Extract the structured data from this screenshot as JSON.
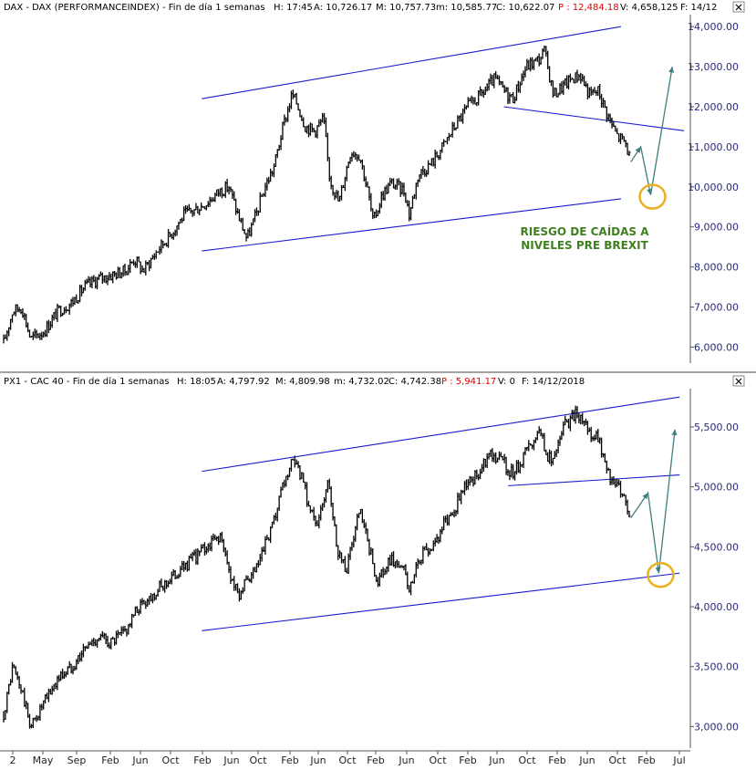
{
  "colors": {
    "price": "#000000",
    "channel": "#1a1acc",
    "arrow": "#3d7f7f",
    "circle": "#e8b020",
    "annotation": "#3f7f1f",
    "header_text": "#000000",
    "header_highlight": "#e00000",
    "axis_text": "#2a2a7a"
  },
  "panels": [
    {
      "id": "dax",
      "header": {
        "name": "DAX - DAX (PERFORMANCEINDEX) - Fin de día 1 semanas",
        "h_label": "H: 17:45",
        "a_label": "A: 10,726.17",
        "m_label": "M: 10,757.73",
        "min_label": "m: 10,585.77",
        "c_label": "C: 10,622.07",
        "p_label": "P : 12,484.18",
        "v_label": "V: 4,658,125",
        "f_label": "F: 14/12"
      },
      "close_icon": "close-icon",
      "annotation": [
        "RIESGO DE CAÍDAS A",
        "NIVELES PRE BREXIT"
      ],
      "y_ticks": [
        "6,000.00",
        "7,000.00",
        "8,000.00",
        "9,000.00",
        "10,000.00",
        "11,000.00",
        "12,000.00",
        "13,000.00",
        "14,000.00"
      ]
    },
    {
      "id": "cac40",
      "header": {
        "name": "PX1 - CAC 40 - Fin de día 1 semanas",
        "h_label": "H: 18:05",
        "a_label": "A: 4,797.92",
        "m_label": "M: 4,809.98",
        "min_label": "m: 4,732.02",
        "c_label": "C: 4,742.38",
        "p_label": "P : 5,941.17",
        "v_label": "V: 0",
        "f_label": "F: 14/12/2018"
      },
      "close_icon": "close-icon",
      "y_ticks": [
        "3,000.00",
        "3,500.00",
        "4,000.00",
        "4,500.00",
        "5,000.00",
        "5,500.00"
      ]
    }
  ],
  "x_axis": {
    "labels": [
      "2",
      "May",
      "Sep",
      "Feb",
      "Jun",
      "Oct",
      "Feb",
      "Jun",
      "Oct",
      "Feb",
      "Jun",
      "Oct",
      "Feb",
      "Jun",
      "Oct",
      "Feb",
      "Jun",
      "Oct",
      "Feb",
      "Jun",
      "Oct",
      "Feb",
      "Jul"
    ]
  },
  "chart_data": [
    {
      "type": "line",
      "title": "DAX - DAX (PERFORMANCEINDEX) - Fin de día 1 semanas",
      "ylim": [
        5600,
        14300
      ],
      "x_range": [
        2012.0,
        2019.6
      ],
      "series": [
        {
          "x": [
            2012.0,
            2012.1,
            2012.2,
            2012.3,
            2012.45,
            2012.6,
            2012.75,
            2012.9,
            2013.05,
            2013.2,
            2013.35,
            2013.45,
            2013.55,
            2013.7,
            2013.85,
            2014.0,
            2014.1,
            2014.25,
            2014.4,
            2014.5,
            2014.6,
            2014.7,
            2014.8,
            2014.9,
            2015.0,
            2015.1,
            2015.2,
            2015.25,
            2015.35,
            2015.45,
            2015.55,
            2015.62,
            2015.72,
            2015.85,
            2015.95,
            2016.05,
            2016.1,
            2016.2,
            2016.3,
            2016.45,
            2016.5,
            2016.6,
            2016.75,
            2016.9,
            2017.0,
            2017.15,
            2017.3,
            2017.45,
            2017.55,
            2017.65,
            2017.8,
            2017.95,
            2018.0,
            2018.1,
            2018.2,
            2018.3,
            2018.4,
            2018.5,
            2018.6,
            2018.7,
            2018.8,
            2018.9,
            2018.96
          ],
          "values": [
            6100,
            6900,
            7000,
            6200,
            6400,
            6900,
            7100,
            7500,
            7700,
            7800,
            7900,
            8200,
            7900,
            8400,
            8800,
            9300,
            9400,
            9600,
            9900,
            10000,
            9300,
            8700,
            9300,
            10000,
            10500,
            11500,
            12300,
            12100,
            11500,
            11400,
            11700,
            10200,
            9600,
            10900,
            10800,
            9800,
            9100,
            9800,
            10100,
            9900,
            9300,
            10300,
            10600,
            11100,
            11500,
            12000,
            12300,
            12700,
            12400,
            12200,
            13000,
            13200,
            13400,
            12300,
            12500,
            12700,
            12800,
            12300,
            12400,
            11800,
            11300,
            11100,
            10622
          ]
        }
      ],
      "channel_upper": {
        "x": [
          2014.2,
          2018.85
        ],
        "y": [
          12200,
          14000
        ]
      },
      "channel_lower": {
        "x": [
          2014.2,
          2018.85
        ],
        "y": [
          8400,
          9700
        ]
      },
      "support_break_line": {
        "x": [
          2017.55,
          2019.55
        ],
        "y": [
          12000,
          11400
        ]
      },
      "projection": {
        "x": [
          2018.96,
          2019.07,
          2019.18,
          2019.42
        ],
        "y": [
          10622,
          11000,
          9800,
          13000
        ]
      },
      "annotation": "RIESGO DE CAÍDAS A NIVELES PRE BREXIT"
    },
    {
      "type": "line",
      "title": "PX1 - CAC 40 - Fin de día 1 semanas",
      "ylim": [
        2820,
        5820
      ],
      "x_range": [
        2012.0,
        2019.6
      ],
      "series": [
        {
          "x": [
            2012.0,
            2012.1,
            2012.2,
            2012.3,
            2012.45,
            2012.6,
            2012.75,
            2012.9,
            2013.05,
            2013.2,
            2013.35,
            2013.5,
            2013.65,
            2013.8,
            2013.95,
            2014.1,
            2014.25,
            2014.4,
            2014.5,
            2014.6,
            2014.7,
            2014.8,
            2014.9,
            2015.0,
            2015.1,
            2015.2,
            2015.3,
            2015.4,
            2015.5,
            2015.6,
            2015.7,
            2015.8,
            2015.95,
            2016.05,
            2016.15,
            2016.3,
            2016.45,
            2016.5,
            2016.6,
            2016.75,
            2016.9,
            2017.0,
            2017.1,
            2017.25,
            2017.4,
            2017.55,
            2017.65,
            2017.8,
            2017.95,
            2018.0,
            2018.1,
            2018.2,
            2018.35,
            2018.5,
            2018.6,
            2018.7,
            2018.8,
            2018.9,
            2018.96
          ],
          "values": [
            3100,
            3500,
            3300,
            3000,
            3200,
            3400,
            3500,
            3650,
            3750,
            3700,
            3800,
            4000,
            4100,
            4200,
            4300,
            4400,
            4500,
            4600,
            4300,
            4100,
            4200,
            4300,
            4500,
            4700,
            5000,
            5200,
            5100,
            4800,
            4700,
            5100,
            4500,
            4300,
            4800,
            4500,
            4200,
            4400,
            4300,
            4100,
            4400,
            4500,
            4700,
            4800,
            5000,
            5100,
            5300,
            5200,
            5100,
            5300,
            5500,
            5300,
            5200,
            5500,
            5600,
            5450,
            5400,
            5100,
            5050,
            4900,
            4742
          ]
        }
      ],
      "channel_upper": {
        "x": [
          2014.2,
          2019.5
        ],
        "y": [
          5130,
          5750
        ]
      },
      "channel_lower": {
        "x": [
          2014.2,
          2019.5
        ],
        "y": [
          3800,
          4280
        ]
      },
      "support_break_line": {
        "x": [
          2017.6,
          2019.5
        ],
        "y": [
          5010,
          5100
        ]
      },
      "projection": {
        "x": [
          2018.96,
          2019.15,
          2019.27,
          2019.45
        ],
        "y": [
          4742,
          4950,
          4280,
          5480
        ]
      }
    }
  ]
}
